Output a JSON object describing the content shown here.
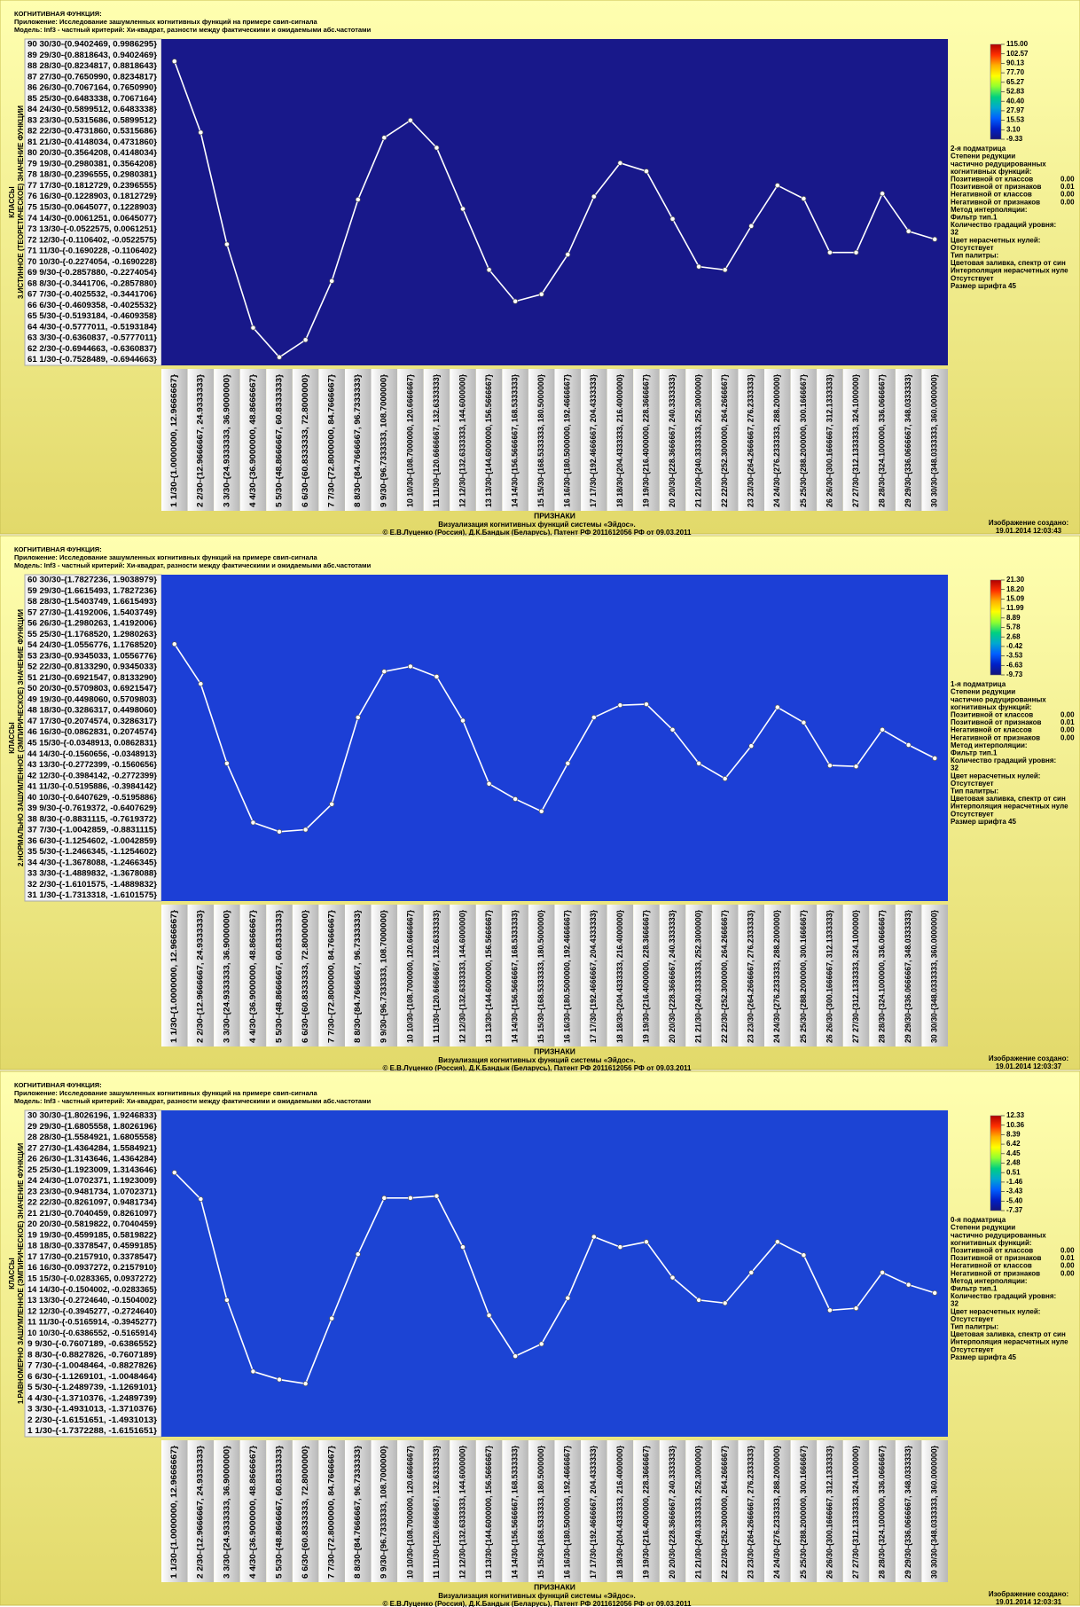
{
  "chart_data": [
    {
      "type": "line",
      "header": [
        "КОГНИТИВНАЯ ФУНКЦИЯ:",
        "Приложение: Исследование зашумленных когнитивных функций на примере свип-сигнала",
        "Модель: Inf3 - частный критерий: Хи-квадрат, разности между фактическими и ожидаемыми абс.частотами"
      ],
      "y_title": "КЛАССЫ",
      "y_subtitle": "3.ИСТИННОЕ (ТЕОРЕТИЧЕСКОЕ) ЗНАЧЕНИЕ ФУНКЦИИ",
      "x_title": "ПРИЗНАКИ",
      "footer": [
        "Визуализация когнитивных функций системы «Эйдос».",
        "© Е.В.Луценко (Россия), Д.К.Бандык (Беларусь), Патент РФ  2011612056 РФ от 09.03.2011"
      ],
      "created_label": "Изображение создано:",
      "created_date": "19.01.2014  12:03:43",
      "heatmap_color": "#18188a",
      "y_categories": [
        "90 30/30-{0.9402469, 0.9986295}",
        "89 29/30-{0.8818643, 0.9402469}",
        "88 28/30-{0.8234817, 0.8818643}",
        "87 27/30-{0.7650990, 0.8234817}",
        "86 26/30-{0.7067164, 0.7650990}",
        "85 25/30-{0.6483338, 0.7067164}",
        "84 24/30-{0.5899512, 0.6483338}",
        "83 23/30-{0.5315686, 0.5899512}",
        "82 22/30-{0.4731860, 0.5315686}",
        "81 21/30-{0.4148034, 0.4731860}",
        "80 20/30-{0.3564208, 0.4148034}",
        "79 19/30-{0.2980381, 0.3564208}",
        "78 18/30-{0.2396555, 0.2980381}",
        "77 17/30-{0.1812729, 0.2396555}",
        "76 16/30-{0.1228903, 0.1812729}",
        "75 15/30-{0.0645077, 0.1228903}",
        "74 14/30-{0.0061251, 0.0645077}",
        "73 13/30-{-0.0522575, 0.0061251}",
        "72 12/30-{-0.1106402, -0.0522575}",
        "71 11/30-{-0.1690228, -0.1106402}",
        "70 10/30-{-0.2274054, -0.1690228}",
        "69 9/30-{-0.2857880, -0.2274054}",
        "68 8/30-{-0.3441706, -0.2857880}",
        "67 7/30-{-0.4025532, -0.3441706}",
        "66 6/30-{-0.4609358, -0.4025532}",
        "65 5/30-{-0.5193184, -0.4609358}",
        "64 4/30-{-0.5777011, -0.5193184}",
        "63 3/30-{-0.6360837, -0.5777011}",
        "62 2/30-{-0.6944663, -0.6360837}",
        "61 1/30-{-0.7528489, -0.6944663}"
      ],
      "ylim": [
        -0.7528489,
        0.9986295
      ],
      "categories": [
        "1 1/30-{1.0000000, 12.9666667}",
        "2 2/30-{12.9666667, 24.9333333}",
        "3 3/30-{24.9333333, 36.9000000}",
        "4 4/30-{36.9000000, 48.8666667}",
        "5 5/30-{48.8666667, 60.8333333}",
        "6 6/30-{60.8333333, 72.8000000}",
        "7 7/30-{72.8000000, 84.7666667}",
        "8 8/30-{84.7666667, 96.7333333}",
        "9 9/30-{96.7333333, 108.7000000}",
        "10 10/30-{108.7000000, 120.6666667}",
        "11 11/30-{120.6666667, 132.6333333}",
        "12 12/30-{132.6333333, 144.6000000}",
        "13 13/30-{144.6000000, 156.5666667}",
        "14 14/30-{156.5666667, 168.5333333}",
        "15 15/30-{168.5333333, 180.5000000}",
        "16 16/30-{180.5000000, 192.4666667}",
        "17 17/30-{192.4666667, 204.4333333}",
        "18 18/30-{204.4333333, 216.4000000}",
        "19 19/30-{216.4000000, 228.3666667}",
        "20 20/30-{228.3666667, 240.3333333}",
        "21 21/30-{240.3333333, 252.3000000}",
        "22 22/30-{252.3000000, 264.2666667}",
        "23 23/30-{264.2666667, 276.2333333}",
        "24 24/30-{276.2333333, 288.2000000}",
        "25 25/30-{288.2000000, 300.1666667}",
        "26 26/30-{300.1666667, 312.1333333}",
        "27 27/30-{312.1333333, 324.1000000}",
        "28 28/30-{324.1000000, 336.0666667}",
        "29 29/30-{336.0666667, 348.0333333}",
        "30 30/30-{348.0333333, 360.0000000}"
      ],
      "color": "#ffffff",
      "values": [
        0.879,
        0.497,
        -0.103,
        -0.551,
        -0.709,
        -0.616,
        -0.3,
        0.137,
        0.469,
        0.562,
        0.415,
        0.087,
        -0.24,
        -0.409,
        -0.371,
        -0.158,
        0.153,
        0.333,
        0.289,
        0.033,
        -0.223,
        -0.24,
        -0.005,
        0.213,
        0.142,
        -0.147,
        -0.147,
        0.169,
        -0.033,
        -0.076
      ],
      "colorbar": {
        "zlim": [
          -9.33,
          115
        ],
        "colors": [
          "#b00000",
          "#ff3000",
          "#ffb000",
          "#ffff00",
          "#90ff30",
          "#00d080",
          "#00a8d0",
          "#0060ff",
          "#0020c8",
          "#14147a"
        ],
        "ticks": [
          {
            "value": 115,
            "label": "115.00"
          },
          102.57,
          90.13,
          {
            "value": 77.7,
            "label": "77.70"
          },
          65.27,
          52.83,
          {
            "value": 40.4,
            "label": "40.40"
          },
          27.97,
          15.53,
          {
            "value": 3.1,
            "label": "3.10"
          },
          -9.33
        ]
      },
      "side_head": [
        "2-я подматрица",
        "Степени редукции",
        "частично редуцированных",
        "когнитивных функций:"
      ],
      "reduction": [
        {
          "label": "Позитивной от классов",
          "value": "0.00"
        },
        {
          "label": "Позитивной от признаков",
          "value": "0.01"
        },
        {
          "label": "Негативной от классов",
          "value": "0.00"
        },
        {
          "label": "Негативной от признаков",
          "value": "0.00"
        }
      ],
      "side_tail": [
        "Метод интерполяции:",
        "Фильтр тип.1",
        "Количество градаций уровня:",
        "32",
        "Цвет нерасчетных нулей:",
        "Отсутствует",
        "Тип палитры:",
        "Цветовая заливка, спектр от син",
        "Интерполяция нерасчетных нуле",
        "Отсутствует",
        "Размер шрифта 45"
      ]
    },
    {
      "type": "line",
      "header": [
        "КОГНИТИВНАЯ ФУНКЦИЯ:",
        "Приложение: Исследование зашумленных когнитивных функций на примере свип-сигнала",
        "Модель: Inf3 - частный критерий: Хи-квадрат, разности между фактическими и ожидаемыми абс.частотами"
      ],
      "y_title": "КЛАССЫ",
      "y_subtitle": "2.НОРМАЛЬНО ЗАШУМЛЕННОЕ (ЭМПИРИЧЕСКОЕ) ЗНАЧЕНИЕ ФУНКЦИИ",
      "x_title": "ПРИЗНАКИ",
      "footer": [
        "Визуализация когнитивных функций системы «Эйдос».",
        "© Е.В.Луценко (Россия), Д.К.Бандык (Беларусь), Патент РФ  2011612056 РФ от 09.03.2011"
      ],
      "created_label": "Изображение создано:",
      "created_date": "19.01.2014  12:03:37",
      "heatmap_color": "#1c3fd6",
      "y_categories": [
        "60 30/30-{1.7827236, 1.9038979}",
        "59 29/30-{1.6615493, 1.7827236}",
        "58 28/30-{1.5403749, 1.6615493}",
        "57 27/30-{1.4192006, 1.5403749}",
        "56 26/30-{1.2980263, 1.4192006}",
        "55 25/30-{1.1768520, 1.2980263}",
        "54 24/30-{1.0556776, 1.1768520}",
        "53 23/30-{0.9345033, 1.0556776}",
        "52 22/30-{0.8133290, 0.9345033}",
        "51 21/30-{0.6921547, 0.8133290}",
        "50 20/30-{0.5709803, 0.6921547}",
        "49 19/30-{0.4498060, 0.5709803}",
        "48 18/30-{0.3286317, 0.4498060}",
        "47 17/30-{0.2074574, 0.3286317}",
        "46 16/30-{0.0862831, 0.2074574}",
        "45 15/30-{-0.0348913, 0.0862831}",
        "44 14/30-{-0.1560656, -0.0348913}",
        "43 13/30-{-0.2772399, -0.1560656}",
        "42 12/30-{-0.3984142, -0.2772399}",
        "41 11/30-{-0.5195886, -0.3984142}",
        "40 10/30-{-0.6407629, -0.5195886}",
        "39 9/30-{-0.7619372, -0.6407629}",
        "38 8/30-{-0.8831115, -0.7619372}",
        "37 7/30-{-1.0042859, -0.8831115}",
        "36 6/30-{-1.1254602, -1.0042859}",
        "35 5/30-{-1.2466345, -1.1254602}",
        "34 4/30-{-1.3678088, -1.2466345}",
        "33 3/30-{-1.4889832, -1.3678088}",
        "32 2/30-{-1.6101575, -1.4889832}",
        "31 1/30-{-1.7313318, -1.6101575}"
      ],
      "ylim": [
        -1.7313318,
        1.9038979
      ],
      "categories": [
        "1 1/30-{1.0000000, 12.9666667}",
        "2 2/30-{12.9666667, 24.9333333}",
        "3 3/30-{24.9333333, 36.9000000}",
        "4 4/30-{36.9000000, 48.8666667}",
        "5 5/30-{48.8666667, 60.8333333}",
        "6 6/30-{60.8333333, 72.8000000}",
        "7 7/30-{72.8000000, 84.7666667}",
        "8 8/30-{84.7666667, 96.7333333}",
        "9 9/30-{96.7333333, 108.7000000}",
        "10 10/30-{108.7000000, 120.6666667}",
        "11 11/30-{120.6666667, 132.6333333}",
        "12 12/30-{132.6333333, 144.6000000}",
        "13 13/30-{144.6000000, 156.5666667}",
        "14 14/30-{156.5666667, 168.5333333}",
        "15 15/30-{168.5333333, 180.5000000}",
        "16 16/30-{180.5000000, 192.4666667}",
        "17 17/30-{192.4666667, 204.4333333}",
        "18 18/30-{204.4333333, 216.4000000}",
        "19 19/30-{216.4000000, 228.3666667}",
        "20 20/30-{228.3666667, 240.3333333}",
        "21 21/30-{240.3333333, 252.3000000}",
        "22 22/30-{252.3000000, 264.2666667}",
        "23 23/30-{264.2666667, 276.2333333}",
        "24 24/30-{276.2333333, 288.2000000}",
        "25 25/30-{288.2000000, 300.1666667}",
        "26 26/30-{300.1666667, 312.1333333}",
        "27 27/30-{312.1333333, 324.1000000}",
        "28 28/30-{324.1000000, 336.0666667}",
        "29 29/30-{336.0666667, 348.0333333}",
        "30 30/30-{348.0333333, 360.0000000}"
      ],
      "color": "#ffffff",
      "values": [
        1.131,
        0.688,
        -0.198,
        -0.857,
        -0.959,
        -0.936,
        -0.652,
        0.314,
        0.825,
        0.882,
        0.768,
        0.279,
        -0.425,
        -0.595,
        -0.732,
        -0.198,
        0.314,
        0.45,
        0.461,
        0.177,
        -0.198,
        -0.368,
        -0.004,
        0.427,
        0.257,
        -0.221,
        -0.232,
        0.177,
        0.007,
        -0.141
      ],
      "colorbar": {
        "zlim": [
          -9.73,
          21.3
        ],
        "colors": [
          "#b00000",
          "#ff3000",
          "#ffb000",
          "#ffff00",
          "#90ff30",
          "#00d080",
          "#00a8d0",
          "#0060ff",
          "#0020c8",
          "#14147a"
        ],
        "ticks": [
          {
            "value": 21.3,
            "label": "21.30"
          },
          {
            "value": 18.2,
            "label": "18.20"
          },
          15.09,
          11.99,
          8.89,
          5.78,
          2.68,
          -0.42,
          -3.53,
          -6.63,
          -9.73
        ]
      },
      "side_head": [
        "1-я подматрица",
        "Степени редукции",
        "частично редуцированных",
        "когнитивных функций:"
      ],
      "reduction": [
        {
          "label": "Позитивной от классов",
          "value": "0.00"
        },
        {
          "label": "Позитивной от признаков",
          "value": "0.01"
        },
        {
          "label": "Негативной от классов",
          "value": "0.00"
        },
        {
          "label": "Негативной от признаков",
          "value": "0.00"
        }
      ],
      "side_tail": [
        "Метод интерполяции:",
        "Фильтр тип.1",
        "Количество градаций уровня:",
        "32",
        "Цвет нерасчетных нулей:",
        "Отсутствует",
        "Тип палитры:",
        "Цветовая заливка, спектр от син",
        "Интерполяция нерасчетных нуле",
        "Отсутствует",
        "Размер шрифта 45"
      ]
    },
    {
      "type": "line",
      "header": [
        "КОГНИТИВНАЯ ФУНКЦИЯ:",
        "Приложение: Исследование зашумленных когнитивных функций на примере свип-сигнала",
        "Модель: Inf3 - частный критерий: Хи-квадрат, разности между фактическими и ожидаемыми абс.частотами"
      ],
      "y_title": "КЛАССЫ",
      "y_subtitle": "1.РАВНОМЕРНО ЗАШУМЛЕННОЕ (ЭМПИРИЧЕСКОЕ) ЗНАЧЕНИЕ ФУНКЦИИ",
      "x_title": "ПРИЗНАКИ",
      "footer": [
        "Визуализация когнитивных функций системы «Эйдос».",
        "© Е.В.Луценко (Россия), Д.К.Бандык (Беларусь), Патент РФ  2011612056 РФ от 09.03.2011"
      ],
      "created_label": "Изображение создано:",
      "created_date": "19.01.2014  12:03:31",
      "heatmap_color": "#1c44d4",
      "y_categories": [
        "30 30/30-{1.8026196, 1.9246833}",
        "29 29/30-{1.6805558, 1.8026196}",
        "28 28/30-{1.5584921, 1.6805558}",
        "27 27/30-{1.4364284, 1.5584921}",
        "26 26/30-{1.3143646, 1.4364284}",
        "25 25/30-{1.1923009, 1.3143646}",
        "24 24/30-{1.0702371, 1.1923009}",
        "23 23/30-{0.9481734, 1.0702371}",
        "22 22/30-{0.8261097, 0.9481734}",
        "21 21/30-{0.7040459, 0.8261097}",
        "20 20/30-{0.5819822, 0.7040459}",
        "19 19/30-{0.4599185, 0.5819822}",
        "18 18/30-{0.3378547, 0.4599185}",
        "17 17/30-{0.2157910, 0.3378547}",
        "16 16/30-{0.0937272, 0.2157910}",
        "15 15/30-{-0.0283365, 0.0937272}",
        "14 14/30-{-0.1504002, -0.0283365}",
        "13 13/30-{-0.2724640, -0.1504002}",
        "12 12/30-{-0.3945277, -0.2724640}",
        "11 11/30-{-0.5165914, -0.3945277}",
        "10 10/30-{-0.6386552, -0.5165914}",
        "9 9/30-{-0.7607189, -0.6386552}",
        "8 8/30-{-0.8827826, -0.7607189}",
        "7 7/30-{-1.0048464, -0.8827826}",
        "6 6/30-{-1.1269101, -1.0048464}",
        "5 5/30-{-1.2489739, -1.1269101}",
        "4 4/30-{-1.3710376, -1.2489739}",
        "3 3/30-{-1.4931013, -1.3710376}",
        "2 2/30-{-1.6151651, -1.4931013}",
        "1 1/30-{-1.7372288, -1.6151651}"
      ],
      "ylim": [
        -1.7372288,
        1.9246833
      ],
      "categories": [
        "1 1/30-{1.0000000, 12.9666667}",
        "2 2/30-{12.9666667, 24.9333333}",
        "3 3/30-{24.9333333, 36.9000000}",
        "4 4/30-{36.9000000, 48.8666667}",
        "5 5/30-{48.8666667, 60.8333333}",
        "6 6/30-{60.8333333, 72.8000000}",
        "7 7/30-{72.8000000, 84.7666667}",
        "8 8/30-{84.7666667, 96.7333333}",
        "9 9/30-{96.7333333, 108.7000000}",
        "10 10/30-{108.7000000, 120.6666667}",
        "11 11/30-{120.6666667, 132.6333333}",
        "12 12/30-{132.6333333, 144.6000000}",
        "13 13/30-{144.6000000, 156.5666667}",
        "14 14/30-{156.5666667, 168.5333333}",
        "15 15/30-{168.5333333, 180.5000000}",
        "16 16/30-{180.5000000, 192.4666667}",
        "17 17/30-{192.4666667, 204.4333333}",
        "18 18/30-{204.4333333, 216.4000000}",
        "19 19/30-{216.4000000, 228.3666667}",
        "20 20/30-{228.3666667, 240.3333333}",
        "21 21/30-{240.3333333, 252.3000000}",
        "22 22/30-{252.3000000, 264.2666667}",
        "23 23/30-{264.2666667, 276.2333333}",
        "24 24/30-{276.2333333, 288.2000000}",
        "25 25/30-{288.2000000, 300.1666667}",
        "26 26/30-{300.1666667, 312.1333333}",
        "27 27/30-{312.1333333, 324.1000000}",
        "28 28/30-{324.1000000, 336.0666667}",
        "29 29/30-{336.0666667, 348.0333333}",
        "30 30/30-{348.0333333, 360.0000000}"
      ],
      "color": "#ffffff",
      "values": [
        1.227,
        0.929,
        -0.204,
        -1.005,
        -1.096,
        -1.142,
        -0.41,
        0.311,
        0.941,
        0.941,
        0.963,
        0.391,
        -0.375,
        -0.833,
        -0.696,
        -0.181,
        0.506,
        0.391,
        0.449,
        0.048,
        -0.204,
        -0.238,
        0.105,
        0.449,
        0.3,
        -0.318,
        -0.296,
        0.105,
        -0.032,
        -0.124
      ],
      "colorbar": {
        "zlim": [
          -7.37,
          12.33
        ],
        "colors": [
          "#b00000",
          "#ff3000",
          "#ffb000",
          "#ffff00",
          "#90ff30",
          "#00d080",
          "#00a8d0",
          "#0060ff",
          "#0020c8",
          "#14147a"
        ],
        "ticks": [
          12.33,
          10.36,
          8.39,
          6.42,
          4.45,
          2.48,
          0.51,
          -1.46,
          -3.43,
          {
            "value": -5.4,
            "label": "-5.40"
          },
          -7.37
        ]
      },
      "side_head": [
        "0-я подматрица",
        "Степени редукции",
        "частично редуцированных",
        "когнитивных функций:"
      ],
      "reduction": [
        {
          "label": "Позитивной от классов",
          "value": "0.00"
        },
        {
          "label": "Позитивной от признаков",
          "value": "0.01"
        },
        {
          "label": "Негативной от классов",
          "value": "0.00"
        },
        {
          "label": "Негативной от признаков",
          "value": "0.00"
        }
      ],
      "side_tail": [
        "Метод интерполяции:",
        "Фильтр тип.1",
        "Количество градаций уровня:",
        "32",
        "Цвет нерасчетных нулей:",
        "Отсутствует",
        "Тип палитры:",
        "Цветовая заливка, спектр от син",
        "Интерполяция нерасчетных нуле",
        "Отсутствует",
        "Размер шрифта 45"
      ]
    }
  ]
}
